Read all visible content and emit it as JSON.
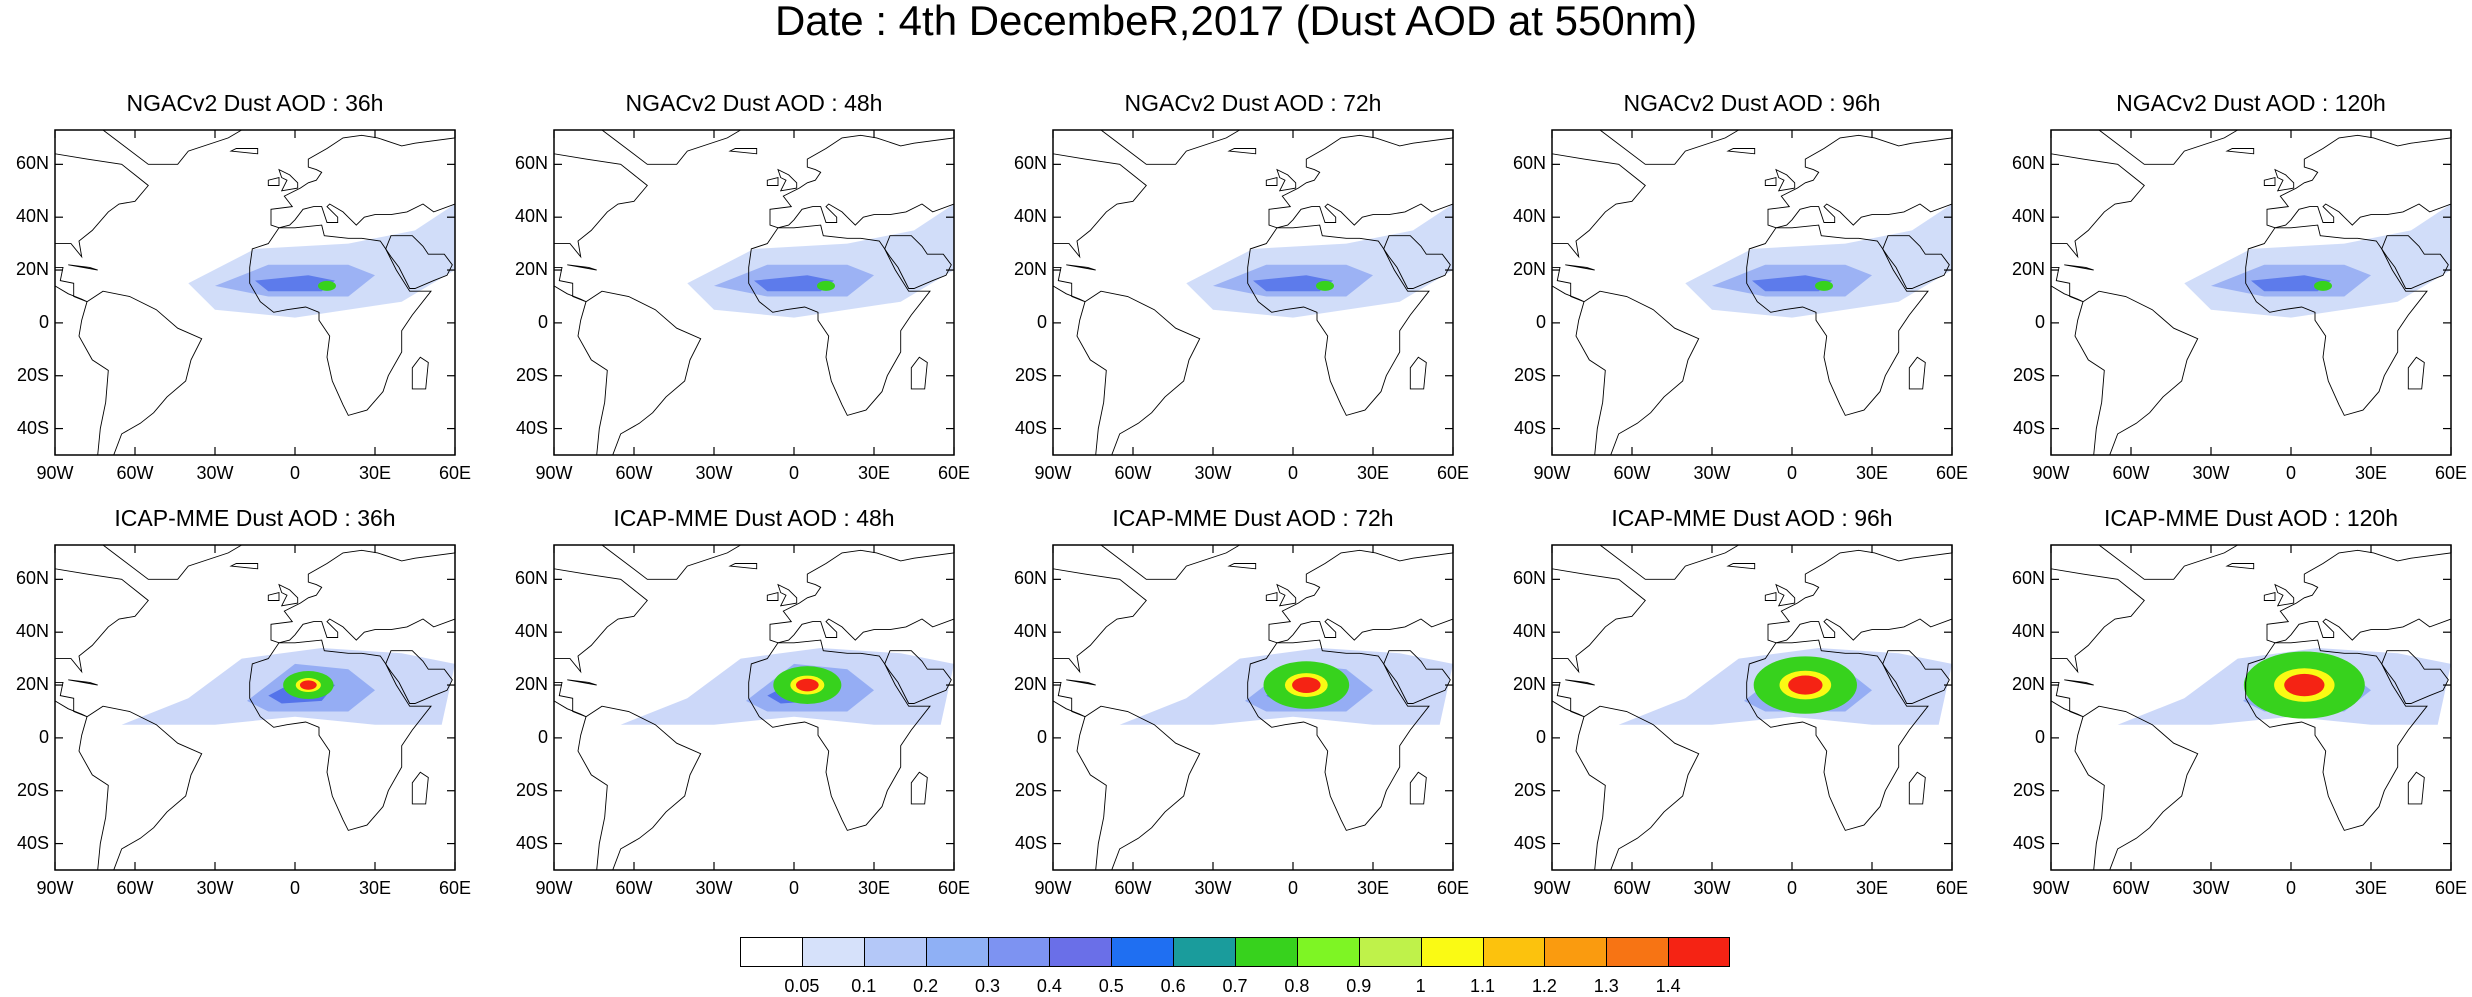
{
  "title": "Date : 4th DecembeR,2017 (Dust AOD at 550nm)",
  "lat_labels": [
    "60N",
    "40N",
    "20N",
    "0",
    "20S",
    "40S"
  ],
  "lon_labels": [
    "90W",
    "60W",
    "30W",
    "0",
    "30E",
    "60E"
  ],
  "rows": [
    {
      "model": "NGACv2",
      "panels": [
        {
          "title": "NGACv2 Dust AOD : 36h"
        },
        {
          "title": "NGACv2 Dust AOD : 48h"
        },
        {
          "title": "NGACv2 Dust AOD : 72h"
        },
        {
          "title": "NGACv2 Dust AOD : 96h"
        },
        {
          "title": "NGACv2 Dust AOD : 120h"
        }
      ]
    },
    {
      "model": "ICAP-MME",
      "panels": [
        {
          "title": "ICAP-MME Dust AOD : 36h"
        },
        {
          "title": "ICAP-MME Dust AOD : 48h"
        },
        {
          "title": "ICAP-MME Dust AOD : 72h"
        },
        {
          "title": "ICAP-MME Dust AOD : 96h"
        },
        {
          "title": "ICAP-MME Dust AOD : 120h"
        }
      ]
    }
  ],
  "colorbar": {
    "colors": [
      "#ffffff",
      "#d6e1fa",
      "#b4c8f8",
      "#8fb0f5",
      "#7d93f2",
      "#6a6fe8",
      "#1f6ff2",
      "#1a9c9c",
      "#37d21d",
      "#7ef524",
      "#bff24a",
      "#fafa14",
      "#fcc20d",
      "#fa9b0f",
      "#f77414",
      "#f52314"
    ],
    "ticks": [
      "0.05",
      "0.1",
      "0.2",
      "0.3",
      "0.4",
      "0.5",
      "0.6",
      "0.7",
      "0.8",
      "0.9",
      "1",
      "1.1",
      "1.2",
      "1.3",
      "1.4"
    ]
  }
}
